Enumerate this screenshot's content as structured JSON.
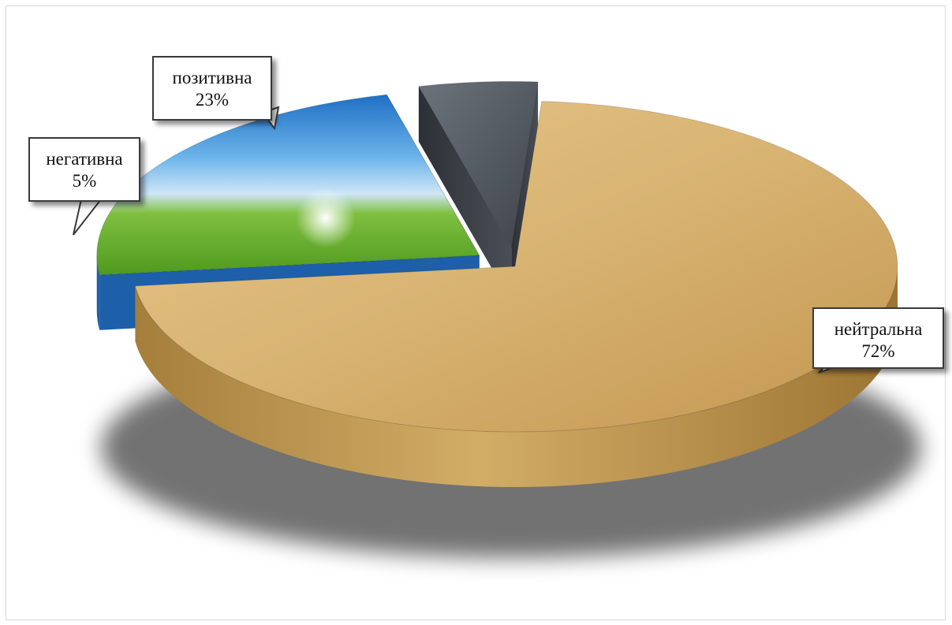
{
  "chart_data": {
    "type": "pie",
    "categories": [
      "нейтральна",
      "позитивна",
      "негативна"
    ],
    "values": [
      72,
      23,
      5
    ],
    "value_labels": [
      "72%",
      "23%",
      "5%"
    ],
    "legend": "none",
    "style": "3d-exploded",
    "colors": {
      "нейтральна": "#c9a25a",
      "позитивна": "#3d8fd6",
      "негативна": "#5a5f66"
    }
  },
  "labels": {
    "neutral": {
      "name": "нейтральна",
      "value": "72%"
    },
    "positive": {
      "name": "позитивна",
      "value": "23%"
    },
    "negative": {
      "name": "негативна",
      "value": "5%"
    }
  }
}
